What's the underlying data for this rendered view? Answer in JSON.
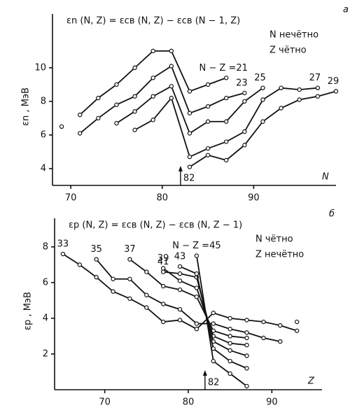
{
  "chart_data": [
    {
      "type": "line",
      "panel": "а",
      "title": "εn (N, Z) = εсв (N, Z) − εсв (N − 1, Z)",
      "notes": [
        "N нечётно",
        "Z чётно"
      ],
      "x_label": "N",
      "y_label": "εn , МэВ",
      "xlim": [
        68,
        99
      ],
      "xticks": [
        70,
        80,
        90
      ],
      "ylim": [
        3,
        13.2
      ],
      "yticks": [
        4,
        6,
        8,
        10
      ],
      "arrow": {
        "value": 82,
        "label": "82"
      },
      "label_at": "end",
      "isolated_points": {
        "x": [
          69
        ],
        "y": [
          6.5
        ]
      },
      "series": [
        {
          "name": "N − Z =21",
          "color": "#111",
          "x": [
            71,
            73,
            75,
            77,
            79,
            81,
            83,
            85,
            87
          ],
          "values": [
            7.2,
            8.2,
            9.0,
            10.0,
            11.0,
            11.0,
            8.6,
            9.0,
            9.4
          ]
        },
        {
          "name": "23",
          "color": "#111",
          "x": [
            71,
            73,
            75,
            77,
            79,
            81,
            83,
            85,
            87,
            89
          ],
          "values": [
            6.1,
            7.0,
            7.8,
            8.3,
            9.4,
            10.1,
            7.3,
            7.7,
            8.2,
            8.5
          ]
        },
        {
          "name": "25",
          "color": "#111",
          "x": [
            75,
            77,
            79,
            81,
            83,
            85,
            87,
            89,
            91
          ],
          "values": [
            6.7,
            7.4,
            8.3,
            8.9,
            6.1,
            6.8,
            6.8,
            8.0,
            8.8
          ]
        },
        {
          "name": "27",
          "color": "#111",
          "x": [
            77,
            79,
            81,
            83,
            85,
            87,
            89,
            91,
            93,
            95,
            97
          ],
          "values": [
            6.3,
            6.9,
            8.2,
            4.7,
            5.2,
            5.6,
            6.2,
            8.1,
            8.8,
            8.7,
            8.8
          ]
        },
        {
          "name": "29",
          "color": "#111",
          "x": [
            83,
            85,
            87,
            89,
            91,
            93,
            95,
            97,
            99
          ],
          "values": [
            4.1,
            4.8,
            4.5,
            5.4,
            6.8,
            7.6,
            8.1,
            8.3,
            8.6
          ]
        }
      ]
    },
    {
      "type": "line",
      "panel": "б",
      "title": "εp (N, Z) = εсв (N, Z) − εсв (N, Z − 1)",
      "notes": [
        "N чётно",
        "Z нечётно"
      ],
      "x_label": "Z",
      "y_label": "εp , МэВ",
      "xlim": [
        64,
        96
      ],
      "xticks": [
        70,
        80,
        90
      ],
      "ylim": [
        0,
        9.6
      ],
      "yticks": [
        2,
        4,
        6,
        8
      ],
      "arrow": {
        "value": 82,
        "label": "82"
      },
      "label_at": "start",
      "isolated_points": {
        "x": [
          93
        ],
        "y": [
          3.8
        ]
      },
      "series": [
        {
          "name": "33",
          "color": "#111",
          "x": [
            65,
            67,
            69,
            71,
            73,
            75,
            77,
            79,
            81,
            83,
            85,
            87,
            89,
            91,
            93
          ],
          "values": [
            7.6,
            7.0,
            6.3,
            5.5,
            5.1,
            4.6,
            3.8,
            3.9,
            3.4,
            4.3,
            4.0,
            3.9,
            3.8,
            3.6,
            3.3
          ]
        },
        {
          "name": "35",
          "color": "#111",
          "x": [
            69,
            71,
            73,
            75,
            77,
            79,
            81,
            83,
            85,
            87,
            89,
            91
          ],
          "values": [
            7.3,
            6.2,
            6.2,
            5.3,
            4.8,
            4.5,
            3.7,
            3.7,
            3.4,
            3.2,
            2.9,
            2.7
          ]
        },
        {
          "name": "37",
          "color": "#111",
          "x": [
            73,
            75,
            77,
            79,
            81,
            83,
            85,
            87
          ],
          "values": [
            7.3,
            6.6,
            5.8,
            5.6,
            5.2,
            3.3,
            3.0,
            2.9
          ]
        },
        {
          "name": "39",
          "color": "#111",
          "x": [
            77,
            79,
            81,
            83,
            85,
            87
          ],
          "values": [
            6.8,
            6.1,
            5.7,
            3.0,
            2.6,
            2.5
          ]
        },
        {
          "name": "41",
          "color": "#111",
          "x": [
            77,
            79,
            81,
            83,
            85,
            87
          ],
          "values": [
            6.6,
            6.5,
            6.3,
            2.7,
            2.2,
            1.9
          ]
        },
        {
          "name": "43",
          "color": "#111",
          "x": [
            79,
            81,
            83,
            85,
            87
          ],
          "values": [
            6.9,
            6.5,
            2.3,
            1.6,
            1.2
          ]
        },
        {
          "name": "N − Z =45",
          "color": "#111",
          "x": [
            81,
            83,
            85,
            87
          ],
          "values": [
            7.5,
            1.6,
            0.9,
            0.2
          ]
        }
      ]
    }
  ]
}
